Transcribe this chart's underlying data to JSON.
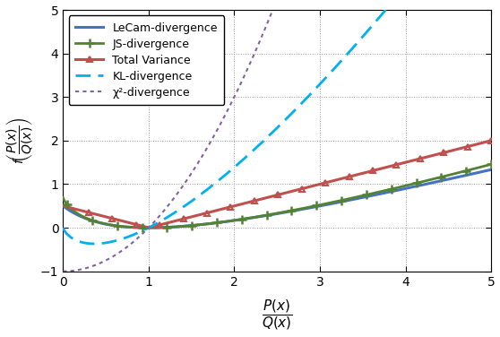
{
  "xlim": [
    0,
    5
  ],
  "ylim": [
    -1,
    5
  ],
  "xticks": [
    0,
    1,
    2,
    3,
    4,
    5
  ],
  "yticks": [
    -1,
    0,
    1,
    2,
    3,
    4,
    5
  ],
  "legend_entries": [
    "LeCam-divergence",
    "JS-divergence",
    "Total Variance",
    "KL-divergence",
    "χ²-divergence"
  ],
  "lecam_color": "#4472C4",
  "js_color": "#548235",
  "tv_color": "#C0504D",
  "kl_color": "#00B0F0",
  "chi2_color": "#8064A2",
  "background_color": "#FFFFFF",
  "figsize": [
    5.58,
    3.76
  ],
  "dpi": 100
}
